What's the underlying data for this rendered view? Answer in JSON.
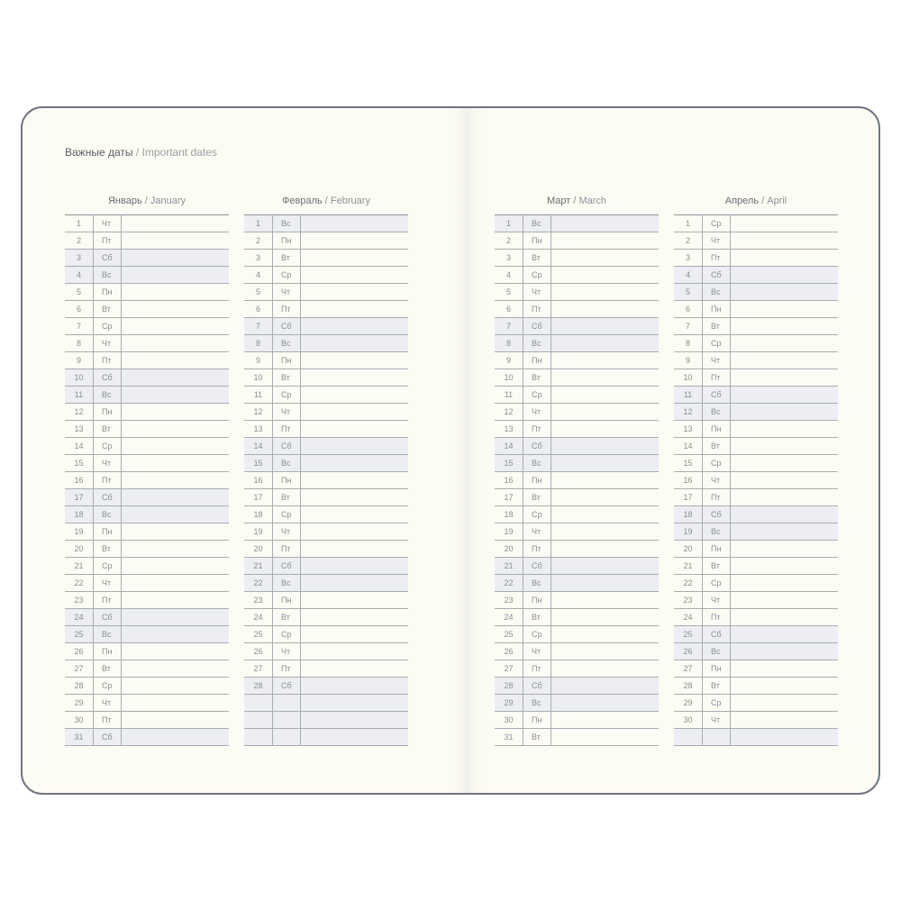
{
  "title": {
    "ru": "Важные даты",
    "sep": " / ",
    "en": "Important dates"
  },
  "weekend_days": [
    "Сб",
    "Вс"
  ],
  "colors": {
    "paper": "#fdfcf4",
    "shade": "#eceef3",
    "border": "#6f7580"
  },
  "months": [
    {
      "ru": "Январь",
      "en": "January",
      "rows": [
        [
          "1",
          "Чт"
        ],
        [
          "2",
          "Пт"
        ],
        [
          "3",
          "Сб"
        ],
        [
          "4",
          "Вс"
        ],
        [
          "5",
          "Пн"
        ],
        [
          "6",
          "Вт"
        ],
        [
          "7",
          "Ср"
        ],
        [
          "8",
          "Чт"
        ],
        [
          "9",
          "Пт"
        ],
        [
          "10",
          "Сб"
        ],
        [
          "11",
          "Вс"
        ],
        [
          "12",
          "Пн"
        ],
        [
          "13",
          "Вт"
        ],
        [
          "14",
          "Ср"
        ],
        [
          "15",
          "Чт"
        ],
        [
          "16",
          "Пт"
        ],
        [
          "17",
          "Сб"
        ],
        [
          "18",
          "Вс"
        ],
        [
          "19",
          "Пн"
        ],
        [
          "20",
          "Вт"
        ],
        [
          "21",
          "Ср"
        ],
        [
          "22",
          "Чт"
        ],
        [
          "23",
          "Пт"
        ],
        [
          "24",
          "Сб"
        ],
        [
          "25",
          "Вс"
        ],
        [
          "26",
          "Пн"
        ],
        [
          "27",
          "Вт"
        ],
        [
          "28",
          "Ср"
        ],
        [
          "29",
          "Чт"
        ],
        [
          "30",
          "Пт"
        ],
        [
          "31",
          "Сб"
        ]
      ]
    },
    {
      "ru": "Февраль",
      "en": "February",
      "rows": [
        [
          "1",
          "Вс"
        ],
        [
          "2",
          "Пн"
        ],
        [
          "3",
          "Вт"
        ],
        [
          "4",
          "Ср"
        ],
        [
          "5",
          "Чт"
        ],
        [
          "6",
          "Пт"
        ],
        [
          "7",
          "Сб"
        ],
        [
          "8",
          "Вс"
        ],
        [
          "9",
          "Пн"
        ],
        [
          "10",
          "Вт"
        ],
        [
          "11",
          "Ср"
        ],
        [
          "12",
          "Чт"
        ],
        [
          "13",
          "Пт"
        ],
        [
          "14",
          "Сб"
        ],
        [
          "15",
          "Вс"
        ],
        [
          "16",
          "Пн"
        ],
        [
          "17",
          "Вт"
        ],
        [
          "18",
          "Ср"
        ],
        [
          "19",
          "Чт"
        ],
        [
          "20",
          "Пт"
        ],
        [
          "21",
          "Сб"
        ],
        [
          "22",
          "Вс"
        ],
        [
          "23",
          "Пн"
        ],
        [
          "24",
          "Вт"
        ],
        [
          "25",
          "Ср"
        ],
        [
          "26",
          "Чт"
        ],
        [
          "27",
          "Пт"
        ],
        [
          "28",
          "Сб"
        ],
        [
          "",
          ""
        ],
        [
          "",
          ""
        ],
        [
          "",
          ""
        ]
      ]
    },
    {
      "ru": "Март",
      "en": "March",
      "rows": [
        [
          "1",
          "Вс"
        ],
        [
          "2",
          "Пн"
        ],
        [
          "3",
          "Вт"
        ],
        [
          "4",
          "Ср"
        ],
        [
          "5",
          "Чт"
        ],
        [
          "6",
          "Пт"
        ],
        [
          "7",
          "Сб"
        ],
        [
          "8",
          "Вс"
        ],
        [
          "9",
          "Пн"
        ],
        [
          "10",
          "Вт"
        ],
        [
          "11",
          "Ср"
        ],
        [
          "12",
          "Чт"
        ],
        [
          "13",
          "Пт"
        ],
        [
          "14",
          "Сб"
        ],
        [
          "15",
          "Вс"
        ],
        [
          "16",
          "Пн"
        ],
        [
          "17",
          "Вт"
        ],
        [
          "18",
          "Ср"
        ],
        [
          "19",
          "Чт"
        ],
        [
          "20",
          "Пт"
        ],
        [
          "21",
          "Сб"
        ],
        [
          "22",
          "Вс"
        ],
        [
          "23",
          "Пн"
        ],
        [
          "24",
          "Вт"
        ],
        [
          "25",
          "Ср"
        ],
        [
          "26",
          "Чт"
        ],
        [
          "27",
          "Пт"
        ],
        [
          "28",
          "Сб"
        ],
        [
          "29",
          "Вс"
        ],
        [
          "30",
          "Пн"
        ],
        [
          "31",
          "Вт"
        ]
      ]
    },
    {
      "ru": "Апрель",
      "en": "April",
      "rows": [
        [
          "1",
          "Ср"
        ],
        [
          "2",
          "Чт"
        ],
        [
          "3",
          "Пт"
        ],
        [
          "4",
          "Сб"
        ],
        [
          "5",
          "Вс"
        ],
        [
          "6",
          "Пн"
        ],
        [
          "7",
          "Вт"
        ],
        [
          "8",
          "Ср"
        ],
        [
          "9",
          "Чт"
        ],
        [
          "10",
          "Пт"
        ],
        [
          "11",
          "Сб"
        ],
        [
          "12",
          "Вс"
        ],
        [
          "13",
          "Пн"
        ],
        [
          "14",
          "Вт"
        ],
        [
          "15",
          "Ср"
        ],
        [
          "16",
          "Чт"
        ],
        [
          "17",
          "Пт"
        ],
        [
          "18",
          "Сб"
        ],
        [
          "19",
          "Вс"
        ],
        [
          "20",
          "Пн"
        ],
        [
          "21",
          "Вт"
        ],
        [
          "22",
          "Ср"
        ],
        [
          "23",
          "Чт"
        ],
        [
          "24",
          "Пт"
        ],
        [
          "25",
          "Сб"
        ],
        [
          "26",
          "Вс"
        ],
        [
          "27",
          "Пн"
        ],
        [
          "28",
          "Вт"
        ],
        [
          "29",
          "Ср"
        ],
        [
          "30",
          "Чт"
        ],
        [
          "",
          ""
        ]
      ]
    }
  ]
}
